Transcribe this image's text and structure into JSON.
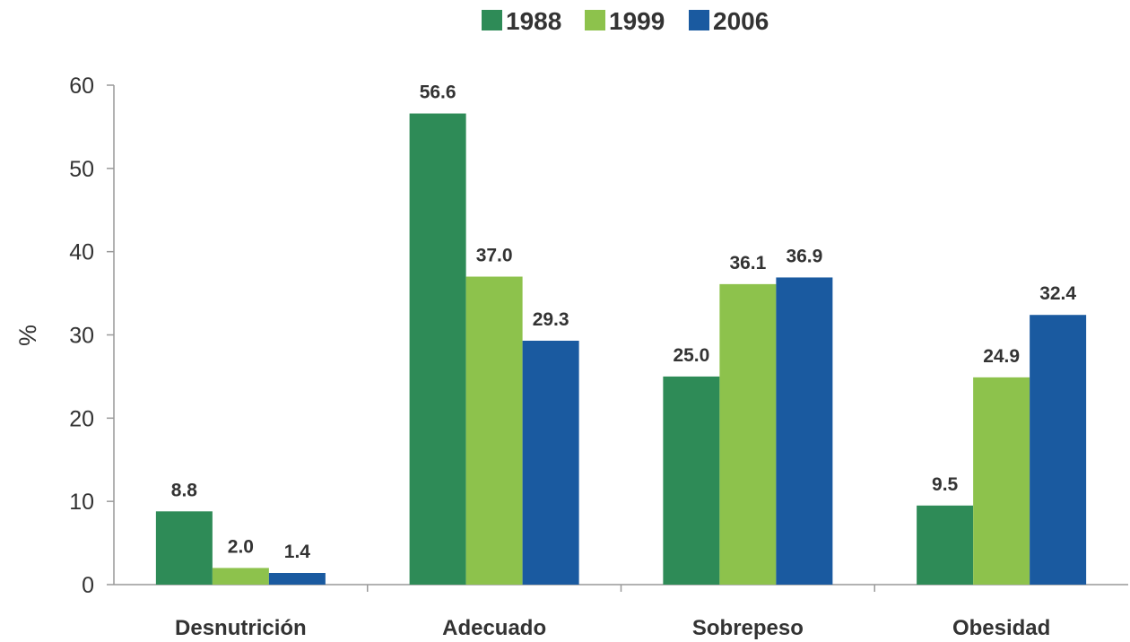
{
  "chart_data": {
    "type": "bar",
    "categories": [
      "Desnutrición",
      "Adecuado",
      "Sobrepeso",
      "Obesidad"
    ],
    "series": [
      {
        "name": "1988",
        "values": [
          8.8,
          56.6,
          25.0,
          9.5
        ],
        "labels": [
          "8.8",
          "56.6",
          "25.0",
          "9.5"
        ],
        "color": "#2e8b57"
      },
      {
        "name": "1999",
        "values": [
          2.0,
          37.0,
          36.1,
          24.9
        ],
        "labels": [
          "2.0",
          "37.0",
          "36.1",
          "24.9"
        ],
        "color": "#8dc24c"
      },
      {
        "name": "2006",
        "values": [
          1.4,
          29.3,
          36.9,
          32.4
        ],
        "labels": [
          "1.4",
          "29.3",
          "36.9",
          "32.4"
        ],
        "color": "#1a5aa0"
      }
    ],
    "ylabel": "%",
    "ylim": [
      0,
      60
    ],
    "yticks": [
      0,
      10,
      20,
      30,
      40,
      50,
      60
    ],
    "legend_position": "top-center",
    "grid": false
  }
}
